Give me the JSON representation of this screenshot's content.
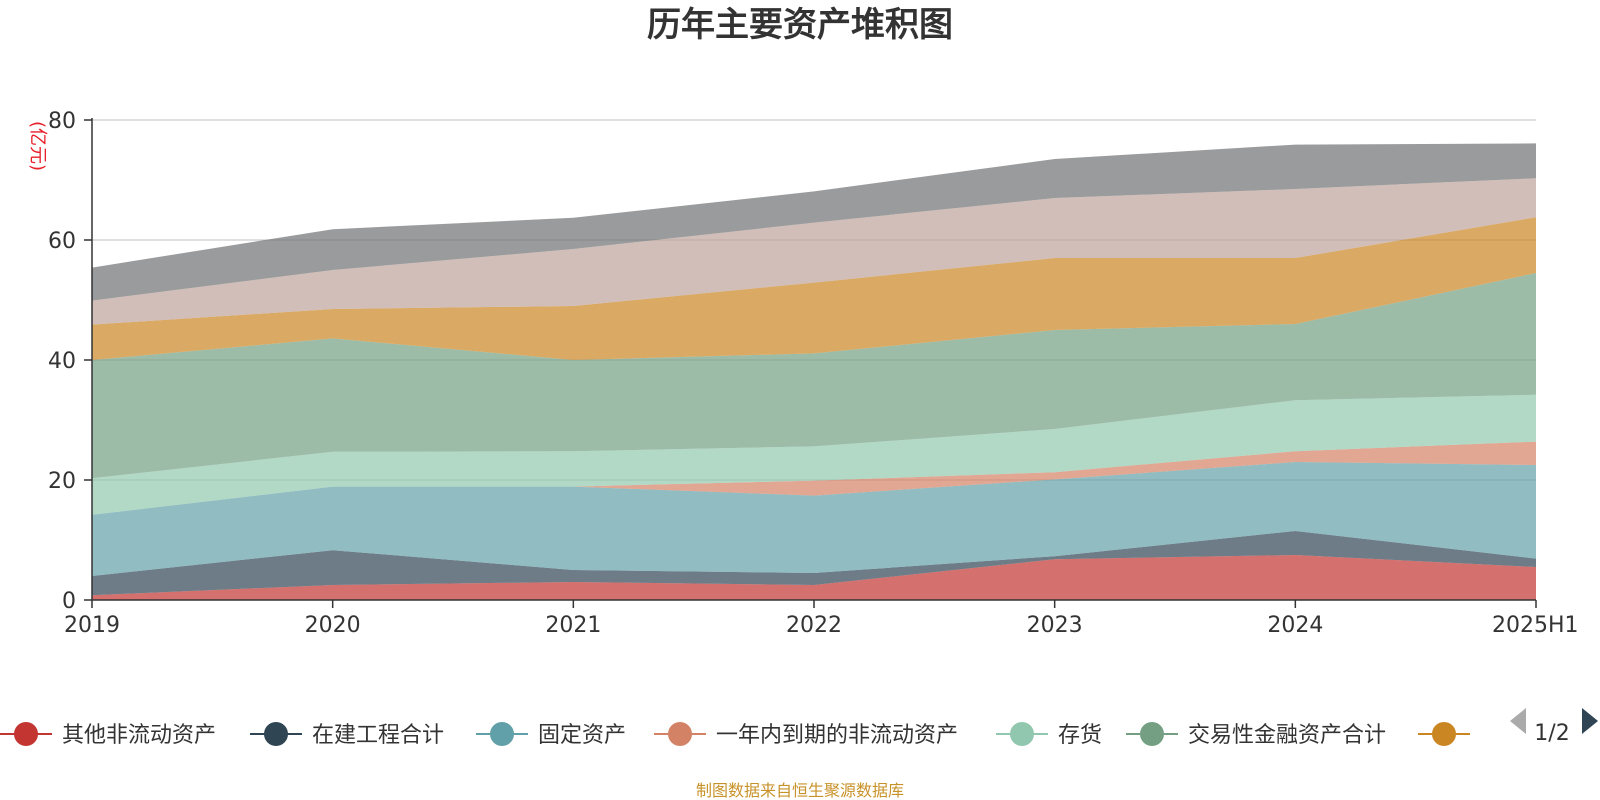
{
  "chart_data": {
    "type": "area",
    "stacked": true,
    "title": "历年主要资产堆积图",
    "unit_label": "(亿元)",
    "categories": [
      "2019",
      "2020",
      "2021",
      "2022",
      "2023",
      "2024",
      "2025H1"
    ],
    "ylim": [
      0,
      80
    ],
    "yticks": [
      0,
      20,
      40,
      60,
      80
    ],
    "grid": true,
    "legend_position": "bottom",
    "series": [
      {
        "name": "其他非流动资产",
        "color": "#c23531",
        "values": [
          0.8,
          2.5,
          3.0,
          2.5,
          6.8,
          7.5,
          5.5
        ]
      },
      {
        "name": "在建工程合计",
        "color": "#2f4554",
        "values": [
          3.2,
          5.8,
          2.0,
          2.0,
          0.5,
          4.0,
          1.4
        ]
      },
      {
        "name": "固定资产",
        "color": "#61a0a8",
        "values": [
          10.2,
          10.6,
          13.9,
          12.9,
          12.8,
          11.5,
          15.6
        ]
      },
      {
        "name": "一年内到期的非流动资产",
        "color": "#d48265",
        "values": [
          0.0,
          0.0,
          0.0,
          2.5,
          1.2,
          1.8,
          3.9
        ]
      },
      {
        "name": "存货",
        "color": "#91c7ae",
        "values": [
          6.1,
          5.8,
          5.9,
          5.7,
          7.2,
          8.5,
          7.8
        ]
      },
      {
        "name": "交易性金融资产合计",
        "color": "#749f83",
        "values": [
          19.7,
          18.9,
          15.2,
          15.5,
          16.5,
          12.7,
          20.3
        ]
      },
      {
        "name": "",
        "color": "#ca8622",
        "values": [
          5.9,
          4.9,
          9.0,
          11.8,
          12.0,
          11.0,
          9.3
        ]
      },
      {
        "name": "",
        "color": "#bda29a",
        "values": [
          4.0,
          6.5,
          9.5,
          10.0,
          10.0,
          11.5,
          6.5
        ]
      },
      {
        "name": "",
        "color": "#6e7074",
        "values": [
          5.5,
          6.8,
          5.2,
          5.2,
          6.5,
          7.4,
          5.8
        ]
      }
    ]
  },
  "legend": {
    "items": [
      {
        "label": "其他非流动资产",
        "color": "#c23531"
      },
      {
        "label": "在建工程合计",
        "color": "#2f4554"
      },
      {
        "label": "固定资产",
        "color": "#61a0a8"
      },
      {
        "label": "一年内到期的非流动资产",
        "color": "#d48265"
      },
      {
        "label": "存货",
        "color": "#91c7ae"
      },
      {
        "label": "交易性金融资产合计",
        "color": "#749f83"
      },
      {
        "label": "",
        "color": "#ca8622"
      }
    ],
    "page_indicator": "1/2"
  },
  "source_note": "制图数据来自恒生聚源数据库"
}
